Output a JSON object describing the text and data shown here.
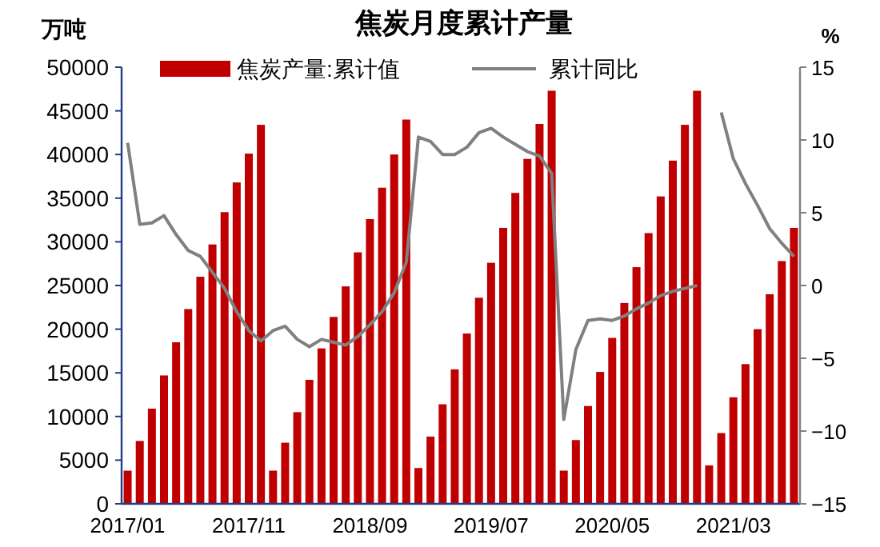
{
  "chart_data": {
    "type": "bar",
    "title": "焦炭月度累计产量",
    "ylabel": "万吨",
    "y2label": "%",
    "categories": [
      "2017/01",
      null,
      null,
      null,
      null,
      null,
      null,
      null,
      null,
      null,
      "2017/11",
      null,
      null,
      null,
      null,
      null,
      null,
      null,
      null,
      null,
      "2018/09",
      null,
      null,
      null,
      null,
      null,
      null,
      null,
      null,
      null,
      "2019/07",
      null,
      null,
      null,
      null,
      null,
      null,
      null,
      null,
      null,
      "2020/05",
      null,
      null,
      null,
      null,
      null,
      null,
      null,
      null,
      null,
      "2021/03",
      null,
      null,
      null,
      null,
      null
    ],
    "series": [
      {
        "name": "焦炭产量:累计值",
        "color": "#c00000",
        "values": [
          3800,
          7200,
          10900,
          14700,
          18500,
          22300,
          26000,
          29700,
          33400,
          36800,
          40100,
          43400,
          3800,
          7000,
          10500,
          14200,
          17800,
          21400,
          24900,
          28800,
          32600,
          36200,
          40000,
          44000,
          4100,
          7700,
          11400,
          15400,
          19500,
          23600,
          27600,
          31600,
          35600,
          39500,
          43500,
          47300,
          3800,
          7300,
          11200,
          15100,
          19000,
          23000,
          27100,
          31000,
          35200,
          39300,
          43400,
          47300,
          4400,
          8100,
          12200,
          16000,
          20000,
          24000,
          27800,
          31600
        ]
      },
      {
        "name": "累计同比",
        "type": "line",
        "axis": "y2",
        "color": "#808080",
        "values": [
          9.8,
          4.2,
          4.3,
          4.8,
          3.5,
          2.4,
          2.0,
          0.9,
          -0.2,
          -1.8,
          -3.1,
          -3.8,
          -3.1,
          -2.8,
          -3.7,
          -4.2,
          -3.7,
          -3.9,
          -4.1,
          -3.5,
          -2.7,
          -1.8,
          -0.5,
          1.6,
          10.2,
          9.9,
          9.0,
          9.0,
          9.5,
          10.5,
          10.8,
          10.2,
          9.7,
          9.2,
          8.9,
          7.7,
          -9.2,
          -4.4,
          -2.4,
          -2.3,
          -2.4,
          -2.1,
          -1.6,
          -1.2,
          -0.7,
          -0.4,
          -0.2,
          0.0,
          null,
          11.9,
          8.7,
          7.0,
          5.5,
          3.9,
          2.9,
          2.0
        ]
      }
    ],
    "ylim": [
      0,
      50000
    ],
    "yticks": [
      0,
      5000,
      10000,
      15000,
      20000,
      25000,
      30000,
      35000,
      40000,
      45000,
      50000
    ],
    "y2lim": [
      -15,
      15
    ],
    "y2ticks": [
      -15,
      -10,
      -5,
      0,
      5,
      10,
      15
    ],
    "legend": "top",
    "grid": false
  }
}
